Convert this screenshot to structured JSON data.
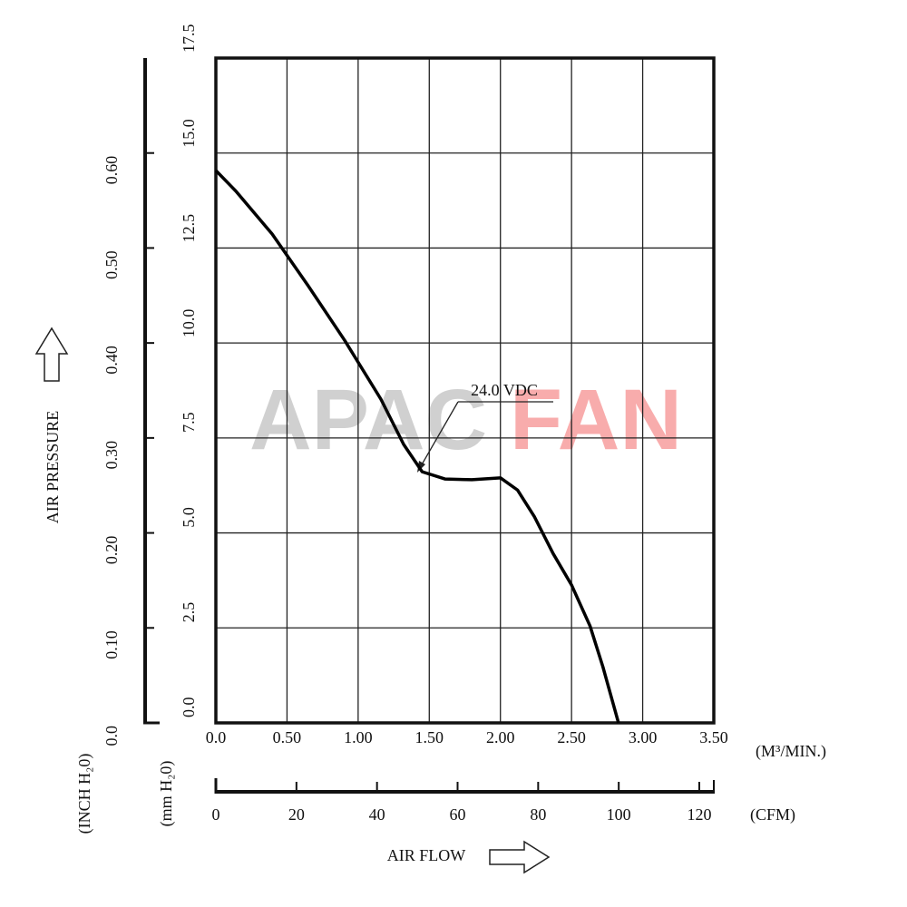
{
  "chart_data": {
    "type": "line",
    "x": [
      0,
      0.14,
      0.395,
      0.65,
      0.905,
      1.16,
      1.32,
      1.45,
      1.61,
      1.8,
      2.0,
      2.12,
      2.24,
      2.37,
      2.5,
      2.63,
      2.72,
      2.83
    ],
    "series": [
      {
        "name": "24.0 VDC",
        "color": "#000000",
        "values": [
          14.54,
          14.0,
          12.87,
          11.5,
          10.07,
          8.52,
          7.33,
          6.61,
          6.42,
          6.4,
          6.45,
          6.13,
          5.42,
          4.46,
          3.63,
          2.55,
          1.48,
          0
        ]
      }
    ],
    "xlim": [
      0,
      3.5
    ],
    "xticks": [
      {
        "value": 0,
        "label": "0.0"
      },
      {
        "value": 0.5,
        "label": "0.50"
      },
      {
        "value": 1,
        "label": "1.00"
      },
      {
        "value": 1.5,
        "label": "1.50"
      },
      {
        "value": 2,
        "label": "2.00"
      },
      {
        "value": 2.5,
        "label": "2.50"
      },
      {
        "value": 3,
        "label": "3.00"
      },
      {
        "value": 3.5,
        "label": "3.50"
      }
    ],
    "x_unit": "(M³/MIN.)",
    "x2lim": [
      0,
      123.6
    ],
    "x2ticks": [
      0,
      20,
      40,
      60,
      80,
      100,
      120
    ],
    "x2_unit": "(CFM)",
    "xlabel": "AIR FLOW",
    "ylim": [
      0,
      17.5
    ],
    "yticks": [
      {
        "value": 0,
        "label": "0.0"
      },
      2.5,
      {
        "value": 5,
        "label": "5.0"
      },
      7.5,
      {
        "value": 10,
        "label": "10.0"
      },
      12.5,
      {
        "value": 15,
        "label": "15.0"
      },
      17.5
    ],
    "y_unit": "(mm H₂0)",
    "y2lim": [
      0,
      0.7
    ],
    "y2ticks": [
      {
        "value": 0,
        "label": "0.0"
      },
      {
        "value": 0.1,
        "label": "0.10"
      },
      {
        "value": 0.2,
        "label": "0.20"
      },
      {
        "value": 0.3,
        "label": "0.30"
      },
      {
        "value": 0.4,
        "label": "0.40"
      },
      {
        "value": 0.5,
        "label": "0.50"
      },
      {
        "value": 0.6,
        "label": "0.60"
      }
    ],
    "y2_unit": "(INCH H₂0)",
    "ylabel": "AIR PRESSURE",
    "grid": true,
    "watermark": [
      "APAC",
      "FAN"
    ]
  }
}
